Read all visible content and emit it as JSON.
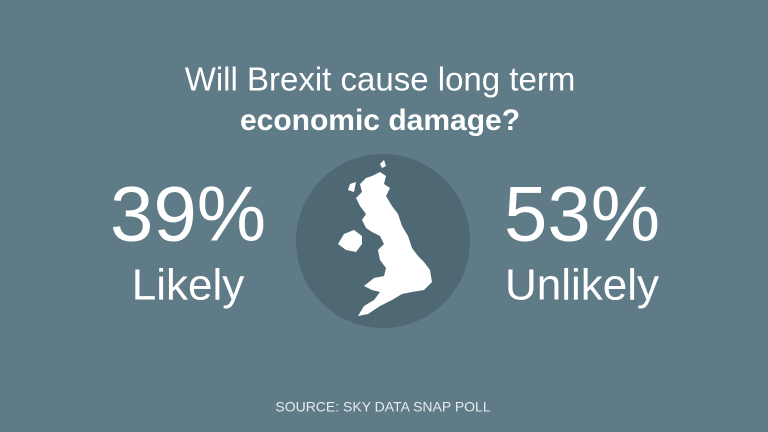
{
  "title": {
    "line1": "Will Brexit cause long term",
    "line2": "economic damage?"
  },
  "left": {
    "percent": "39%",
    "label": "Likely"
  },
  "right": {
    "percent": "53%",
    "label": "Unlikely"
  },
  "source": "SOURCE: SKY DATA SNAP POLL"
}
